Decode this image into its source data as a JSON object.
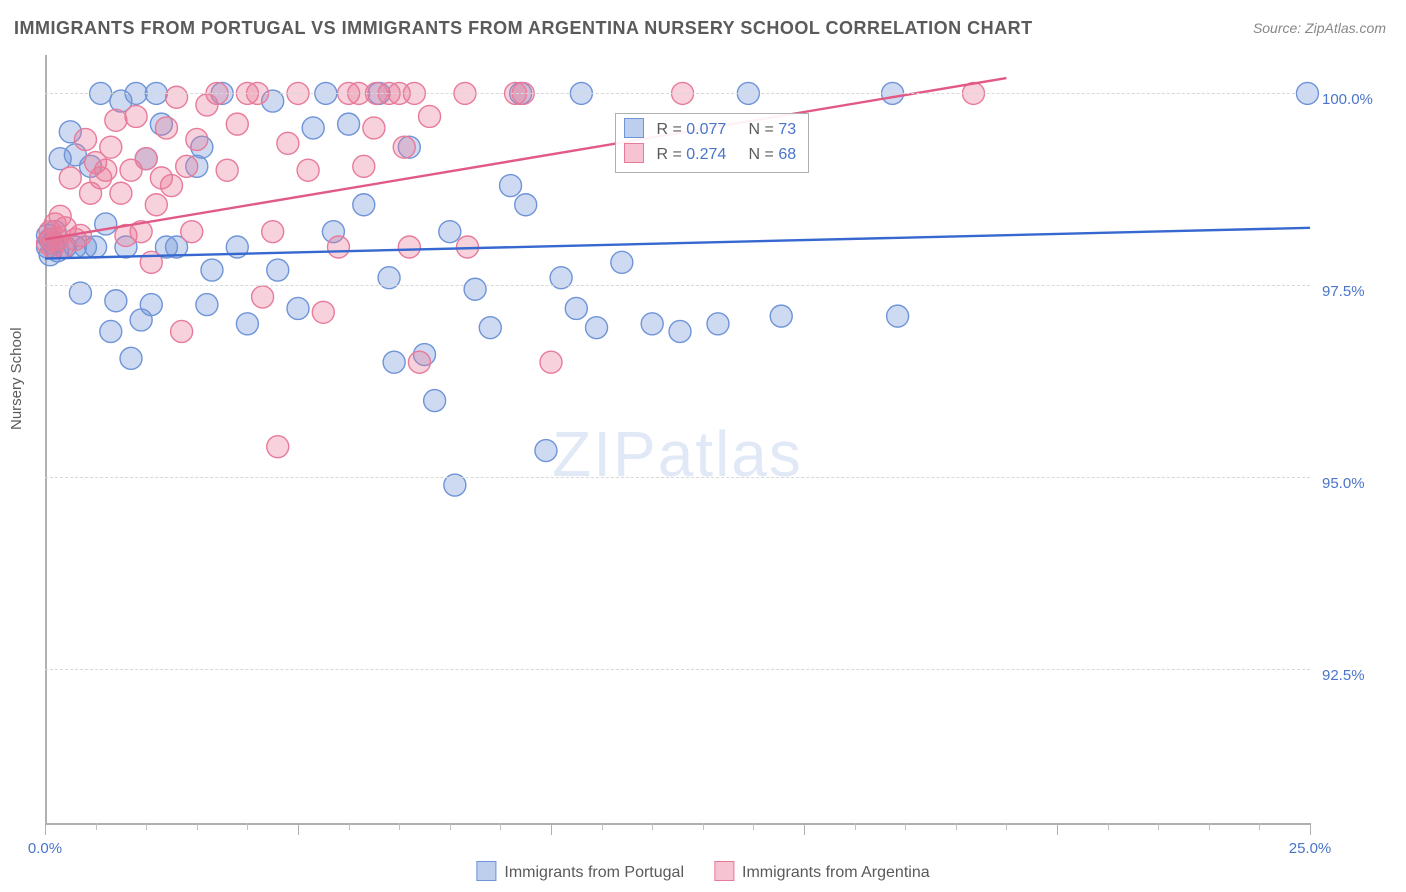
{
  "title": "IMMIGRANTS FROM PORTUGAL VS IMMIGRANTS FROM ARGENTINA NURSERY SCHOOL CORRELATION CHART",
  "source_label": "Source: ZipAtlas.com",
  "watermark_text": "ZIPatlas",
  "ylabel": "Nursery School",
  "chart": {
    "type": "scatter",
    "x_domain": [
      0,
      25
    ],
    "y_domain": [
      90.5,
      100.5
    ],
    "x_ticks_major": [
      0,
      5,
      10,
      15,
      20,
      25
    ],
    "x_ticks_minor": [
      1,
      2,
      3,
      4,
      6,
      7,
      8,
      9,
      11,
      12,
      13,
      14,
      16,
      17,
      18,
      19,
      21,
      22,
      23,
      24
    ],
    "x_tick_labels": [
      {
        "x": 0,
        "label": "0.0%"
      },
      {
        "x": 25,
        "label": "25.0%"
      }
    ],
    "y_gridlines": [
      92.5,
      95.0,
      97.5,
      100.0
    ],
    "y_tick_labels": [
      {
        "y": 92.5,
        "label": "92.5%"
      },
      {
        "y": 95.0,
        "label": "95.0%"
      },
      {
        "y": 97.5,
        "label": "97.5%"
      },
      {
        "y": 100.0,
        "label": "100.0%"
      }
    ],
    "marker_radius": 11,
    "marker_stroke_width": 1.4,
    "line_width": 2.4,
    "grid_color": "#d8d8d8",
    "axis_color": "#b0b0b0",
    "background_color": "#ffffff",
    "series": [
      {
        "id": "portugal",
        "label": "Immigrants from Portugal",
        "fill_color": "#6f94d8",
        "fill_opacity": 0.35,
        "stroke_color": "#6f94d8",
        "line_color": "#3668cf",
        "R": "0.077",
        "N": "73",
        "trend": {
          "x1": 0,
          "y1": 97.85,
          "x2": 25,
          "y2": 98.25
        },
        "points": [
          [
            0.05,
            98.0
          ],
          [
            0.05,
            98.15
          ],
          [
            0.1,
            98.1
          ],
          [
            0.1,
            97.9
          ],
          [
            0.15,
            98.05
          ],
          [
            0.2,
            98.2
          ],
          [
            0.25,
            97.95
          ],
          [
            0.3,
            99.15
          ],
          [
            0.4,
            98.0
          ],
          [
            0.5,
            99.5
          ],
          [
            0.6,
            98.0
          ],
          [
            0.6,
            99.2
          ],
          [
            0.7,
            97.4
          ],
          [
            0.8,
            98.0
          ],
          [
            0.9,
            99.05
          ],
          [
            1.0,
            98.0
          ],
          [
            1.1,
            100.0
          ],
          [
            1.2,
            98.3
          ],
          [
            1.3,
            96.9
          ],
          [
            1.4,
            97.3
          ],
          [
            1.5,
            99.9
          ],
          [
            1.6,
            98.0
          ],
          [
            1.7,
            96.55
          ],
          [
            1.8,
            100.0
          ],
          [
            1.9,
            97.05
          ],
          [
            2.0,
            99.15
          ],
          [
            2.1,
            97.25
          ],
          [
            2.2,
            100.0
          ],
          [
            2.3,
            99.6
          ],
          [
            2.4,
            98.0
          ],
          [
            2.6,
            98.0
          ],
          [
            3.0,
            99.05
          ],
          [
            3.1,
            99.3
          ],
          [
            3.2,
            97.25
          ],
          [
            3.3,
            97.7
          ],
          [
            3.5,
            100.0
          ],
          [
            3.8,
            98.0
          ],
          [
            4.0,
            97.0
          ],
          [
            4.5,
            99.9
          ],
          [
            4.6,
            97.7
          ],
          [
            5.0,
            97.2
          ],
          [
            5.3,
            99.55
          ],
          [
            5.55,
            100.0
          ],
          [
            5.7,
            98.2
          ],
          [
            6.0,
            99.6
          ],
          [
            6.3,
            98.55
          ],
          [
            6.6,
            100.0
          ],
          [
            6.8,
            97.6
          ],
          [
            6.9,
            96.5
          ],
          [
            7.2,
            99.3
          ],
          [
            7.5,
            96.6
          ],
          [
            7.7,
            96.0
          ],
          [
            8.0,
            98.2
          ],
          [
            8.1,
            94.9
          ],
          [
            8.5,
            97.45
          ],
          [
            8.8,
            96.95
          ],
          [
            9.2,
            98.8
          ],
          [
            9.4,
            100.0
          ],
          [
            9.5,
            98.55
          ],
          [
            9.9,
            95.35
          ],
          [
            10.2,
            97.6
          ],
          [
            10.5,
            97.2
          ],
          [
            10.6,
            100.0
          ],
          [
            10.9,
            96.95
          ],
          [
            11.4,
            97.8
          ],
          [
            12.0,
            97.0
          ],
          [
            12.55,
            96.9
          ],
          [
            13.3,
            97.0
          ],
          [
            13.9,
            100.0
          ],
          [
            14.55,
            97.1
          ],
          [
            16.75,
            100.0
          ],
          [
            16.85,
            97.1
          ],
          [
            24.95,
            100.0
          ]
        ]
      },
      {
        "id": "argentina",
        "label": "Immigrants from Argentina",
        "fill_color": "#e87b9a",
        "fill_opacity": 0.35,
        "stroke_color": "#e87b9a",
        "line_color": "#e15a86",
        "R": "0.274",
        "N": "68",
        "trend": {
          "x1": 0,
          "y1": 98.1,
          "x2": 19,
          "y2": 100.2
        },
        "points": [
          [
            0.05,
            98.05
          ],
          [
            0.1,
            98.2
          ],
          [
            0.12,
            98.1
          ],
          [
            0.15,
            98.0
          ],
          [
            0.2,
            98.3
          ],
          [
            0.25,
            98.1
          ],
          [
            0.3,
            98.4
          ],
          [
            0.35,
            98.0
          ],
          [
            0.4,
            98.25
          ],
          [
            0.5,
            98.9
          ],
          [
            0.6,
            98.1
          ],
          [
            0.7,
            98.15
          ],
          [
            0.8,
            99.4
          ],
          [
            0.9,
            98.7
          ],
          [
            1.0,
            99.1
          ],
          [
            1.1,
            98.9
          ],
          [
            1.2,
            99.0
          ],
          [
            1.3,
            99.3
          ],
          [
            1.4,
            99.65
          ],
          [
            1.5,
            98.7
          ],
          [
            1.6,
            98.15
          ],
          [
            1.7,
            99.0
          ],
          [
            1.8,
            99.7
          ],
          [
            1.9,
            98.2
          ],
          [
            2.0,
            99.15
          ],
          [
            2.1,
            97.8
          ],
          [
            2.2,
            98.55
          ],
          [
            2.3,
            98.9
          ],
          [
            2.4,
            99.55
          ],
          [
            2.5,
            98.8
          ],
          [
            2.6,
            99.95
          ],
          [
            2.7,
            96.9
          ],
          [
            2.8,
            99.05
          ],
          [
            2.9,
            98.2
          ],
          [
            3.0,
            99.4
          ],
          [
            3.2,
            99.85
          ],
          [
            3.4,
            100.0
          ],
          [
            3.6,
            99.0
          ],
          [
            3.8,
            99.6
          ],
          [
            4.0,
            100.0
          ],
          [
            4.2,
            100.0
          ],
          [
            4.3,
            97.35
          ],
          [
            4.5,
            98.2
          ],
          [
            4.6,
            95.4
          ],
          [
            4.8,
            99.35
          ],
          [
            5.0,
            100.0
          ],
          [
            5.2,
            99.0
          ],
          [
            5.5,
            97.15
          ],
          [
            5.8,
            98.0
          ],
          [
            6.0,
            100.0
          ],
          [
            6.2,
            100.0
          ],
          [
            6.3,
            99.05
          ],
          [
            6.5,
            99.55
          ],
          [
            6.55,
            100.0
          ],
          [
            6.8,
            100.0
          ],
          [
            7.0,
            100.0
          ],
          [
            7.1,
            99.3
          ],
          [
            7.2,
            98.0
          ],
          [
            7.3,
            100.0
          ],
          [
            7.4,
            96.5
          ],
          [
            7.6,
            99.7
          ],
          [
            8.3,
            100.0
          ],
          [
            8.35,
            98.0
          ],
          [
            9.3,
            100.0
          ],
          [
            9.45,
            100.0
          ],
          [
            10.0,
            96.5
          ],
          [
            12.6,
            100.0
          ],
          [
            18.35,
            100.0
          ]
        ]
      }
    ]
  },
  "legend": {
    "stat_label_R": "R = ",
    "stat_label_N": "N = "
  }
}
